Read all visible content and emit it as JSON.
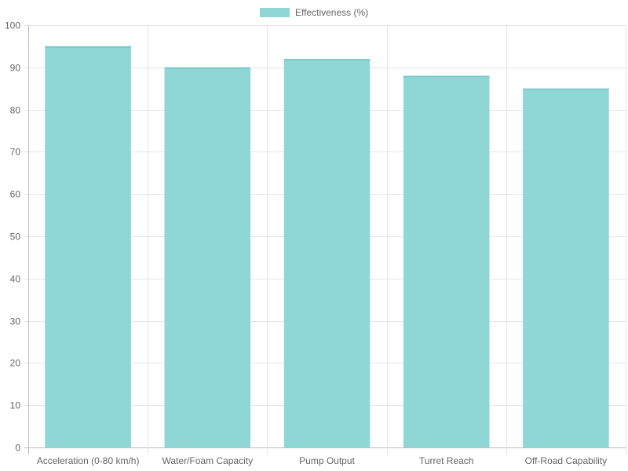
{
  "chart_data": {
    "type": "bar",
    "title": "",
    "xlabel": "",
    "ylabel": "",
    "categories": [
      "Acceleration (0-80 km/h)",
      "Water/Foam Capacity",
      "Pump Output",
      "Turret Reach",
      "Off-Road Capability"
    ],
    "series": [
      {
        "name": "Effectiveness (%)",
        "values": [
          95,
          90,
          92,
          88,
          85
        ],
        "color": "#8fd6d6"
      }
    ],
    "ylim": [
      0,
      100
    ],
    "yticks": [
      0,
      10,
      20,
      30,
      40,
      50,
      60,
      70,
      80,
      90,
      100
    ],
    "grid": true,
    "legend_position": "top"
  }
}
